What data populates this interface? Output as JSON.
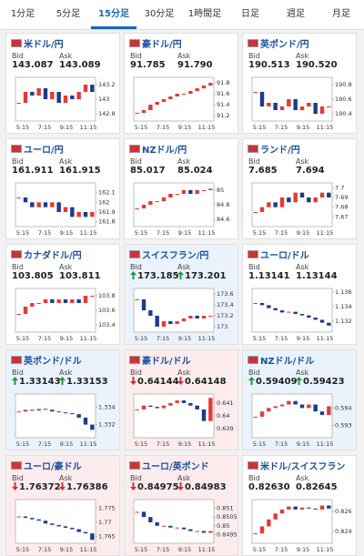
{
  "tabs": [
    "1分足",
    "5分足",
    "15分足",
    "30分足",
    "1時間足",
    "日足",
    "週足",
    "月足"
  ],
  "active_tab": 2,
  "labels": {
    "bid": "Bid",
    "ask": "Ask"
  },
  "time_labels": [
    "5:15",
    "7:15",
    "9:15",
    "11:15"
  ],
  "cards": [
    {
      "name": "米ドル/円",
      "bid": "143.087",
      "ask": "143.089",
      "direction": null,
      "chart": {
        "ylim": [
          142.7,
          143.3
        ],
        "yticks": [
          143.2,
          143,
          142.8
        ],
        "prices": [
          142.95,
          143.1,
          143.05,
          143.15,
          143.0,
          143.1,
          142.95,
          143.05,
          143.0,
          143.1,
          143.2,
          143.1
        ]
      }
    },
    {
      "name": "豪ドル/円",
      "bid": "91.785",
      "ask": "91.790",
      "direction": null,
      "chart": {
        "ylim": [
          91.1,
          91.9
        ],
        "yticks": [
          91.8,
          91.6,
          91.4,
          91.2
        ],
        "prices": [
          91.25,
          91.3,
          91.4,
          91.45,
          91.5,
          91.55,
          91.6,
          91.6,
          91.65,
          91.7,
          91.75,
          91.8
        ]
      }
    },
    {
      "name": "英ポンド/円",
      "bid": "190.513",
      "ask": "190.520",
      "direction": null,
      "chart": {
        "ylim": [
          190.3,
          190.9
        ],
        "yticks": [
          190.8,
          190.6,
          190.4
        ],
        "prices": [
          190.7,
          190.5,
          190.55,
          190.45,
          190.5,
          190.6,
          190.45,
          190.5,
          190.55,
          190.4,
          190.5,
          190.5
        ]
      }
    },
    {
      "name": "ユーロ/円",
      "bid": "161.911",
      "ask": "161.915",
      "direction": null,
      "chart": {
        "ylim": [
          161.75,
          162.2
        ],
        "yticks": [
          162.1,
          162,
          161.9,
          161.8
        ],
        "prices": [
          162.05,
          162.0,
          161.95,
          162.0,
          161.95,
          162.0,
          161.9,
          161.95,
          161.85,
          161.9,
          161.85,
          161.9
        ]
      }
    },
    {
      "name": "NZドル/円",
      "bid": "85.017",
      "ask": "85.024",
      "direction": null,
      "chart": {
        "ylim": [
          84.5,
          85.1
        ],
        "yticks": [
          85,
          84.8,
          84.6
        ],
        "prices": [
          84.75,
          84.8,
          84.85,
          84.85,
          84.9,
          84.95,
          84.95,
          85.0,
          84.95,
          85.0,
          85.0,
          85.02
        ]
      }
    },
    {
      "name": "ランド/円",
      "bid": "7.685",
      "ask": "7.694",
      "direction": null,
      "chart": {
        "ylim": [
          7.66,
          7.705
        ],
        "yticks": [
          7.7,
          7.69,
          7.68,
          7.67
        ],
        "prices": [
          7.675,
          7.68,
          7.685,
          7.68,
          7.69,
          7.685,
          7.695,
          7.69,
          7.685,
          7.69,
          7.695,
          7.69
        ]
      }
    },
    {
      "name": "カナダドル/円",
      "bid": "103.805",
      "ask": "103.811",
      "direction": null,
      "chart": {
        "ylim": [
          103.3,
          103.9
        ],
        "yticks": [
          103.8,
          103.6,
          103.4
        ],
        "prices": [
          103.55,
          103.65,
          103.7,
          103.7,
          103.75,
          103.7,
          103.75,
          103.7,
          103.75,
          103.7,
          103.8,
          103.8
        ]
      }
    },
    {
      "name": "スイスフラン/円",
      "bid": "173.185",
      "ask": "173.201",
      "direction": "up",
      "chart": {
        "ylim": [
          172.9,
          173.7
        ],
        "yticks": [
          173.6,
          173.4,
          173.2,
          173
        ],
        "prices": [
          173.5,
          173.3,
          173.2,
          173.0,
          173.1,
          173.05,
          173.1,
          173.15,
          173.2,
          173.15,
          173.2,
          173.2
        ]
      }
    },
    {
      "name": "ユーロ/ドル",
      "bid": "1.13141",
      "ask": "1.13144",
      "direction": null,
      "chart": {
        "ylim": [
          1.1305,
          1.1365
        ],
        "yticks": [
          1.136,
          1.134,
          1.132
        ],
        "prices": [
          1.1345,
          1.1342,
          1.1338,
          1.1335,
          1.1332,
          1.1333,
          1.133,
          1.1328,
          1.1325,
          1.1322,
          1.1318,
          1.1314
        ]
      }
    },
    {
      "name": "英ポンド/ドル",
      "bid": "1.33143",
      "ask": "1.33153",
      "direction": "up",
      "chart": {
        "ylim": [
          1.3305,
          1.3355
        ],
        "yticks": [
          1.334,
          1.332
        ],
        "prices": [
          1.3335,
          1.3337,
          1.3336,
          1.3338,
          1.3337,
          1.3335,
          1.3334,
          1.3333,
          1.3332,
          1.3328,
          1.332,
          1.3314
        ]
      }
    },
    {
      "name": "豪ドル/ドル",
      "bid": "0.64144",
      "ask": "0.64148",
      "direction": "down",
      "chart": {
        "ylim": [
          0.6383,
          0.6417
        ],
        "yticks": [
          0.641,
          0.64,
          0.639
        ],
        "prices": [
          0.6405,
          0.6408,
          0.6407,
          0.6406,
          0.6408,
          0.641,
          0.6412,
          0.641,
          0.6408,
          0.6405,
          0.6396,
          0.6414
        ]
      }
    },
    {
      "name": "NZドル/ドル",
      "bid": "0.59409",
      "ask": "0.59423",
      "direction": "up",
      "chart": {
        "ylim": [
          0.5923,
          0.5948
        ],
        "yticks": [
          0.594,
          0.593
        ],
        "prices": [
          0.5935,
          0.5938,
          0.594,
          0.5941,
          0.5942,
          0.5944,
          0.5942,
          0.594,
          0.5942,
          0.5938,
          0.5936,
          0.5941
        ]
      }
    },
    {
      "name": "ユーロ/豪ドル",
      "bid": "1.76372",
      "ask": "1.76386",
      "direction": "down",
      "chart": {
        "ylim": [
          1.7625,
          1.778
        ],
        "yticks": [
          1.775,
          1.77,
          1.765
        ],
        "prices": [
          1.772,
          1.7715,
          1.771,
          1.7705,
          1.7695,
          1.769,
          1.7685,
          1.768,
          1.7675,
          1.7665,
          1.766,
          1.7637
        ]
      }
    },
    {
      "name": "ユーロ/英ポンド",
      "bid": "0.84975",
      "ask": "0.84983",
      "direction": "down",
      "chart": {
        "ylim": [
          0.849,
          0.8515
        ],
        "yticks": [
          0.851,
          0.8505,
          0.85,
          0.8495
        ],
        "prices": [
          0.8508,
          0.8505,
          0.8502,
          0.85,
          0.85,
          0.8499,
          0.8499,
          0.8498,
          0.8497,
          0.8497,
          0.8496,
          0.8497
        ]
      }
    },
    {
      "name": "米ドル/スイスフラン",
      "bid": "0.82630",
      "ask": "0.82645",
      "direction": null,
      "chart": {
        "ylim": [
          0.8228,
          0.8272
        ],
        "yticks": [
          0.826,
          0.824
        ],
        "prices": [
          0.8238,
          0.8245,
          0.8252,
          0.8258,
          0.8262,
          0.8265,
          0.8262,
          0.8264,
          0.8263,
          0.8262,
          0.8266,
          0.8263
        ]
      }
    }
  ]
}
